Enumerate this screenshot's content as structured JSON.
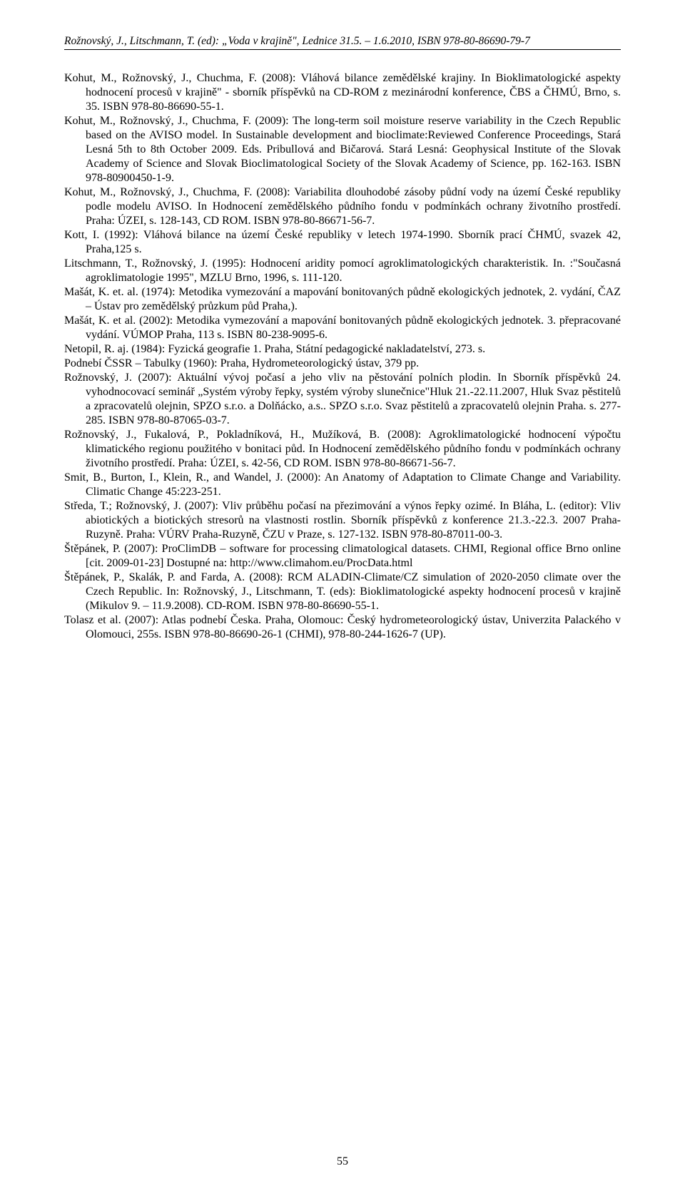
{
  "header": {
    "running_head": "Rožnovský, J., Litschmann, T. (ed): „Voda v krajině\", Lednice 31.5. – 1.6.2010, ISBN 978-80-86690-79-7"
  },
  "references": [
    "Kohut, M., Rožnovský, J., Chuchma, F. (2008): Vláhová bilance zemědělské krajiny. In Bioklimatologické aspekty hodnocení procesů v krajině\" - sborník příspěvků na CD-ROM z mezinárodní konference, ČBS a ČHMÚ, Brno, s. 35. ISBN 978-80-86690-55-1.",
    "Kohut, M., Rožnovský, J., Chuchma, F. (2009): The long-term soil moisture reserve variability in the Czech Republic based on the AVISO model. In Sustainable development and bioclimate:Reviewed Conference Proceedings, Stará Lesná 5th to 8th October 2009. Eds. Pribullová and Bičarová. Stará Lesná: Geophysical Institute of the Slovak Academy of Science and Slovak Bioclimatological Society of the Slovak Academy of Science, pp. 162-163. ISBN 978-80900450-1-9.",
    "Kohut, M., Rožnovský, J., Chuchma, F. (2008): Variabilita dlouhodobé zásoby půdní vody na území České republiky podle modelu AVISO. In Hodnocení zemědělského půdního fondu v podmínkách ochrany životního prostředí. Praha: ÚZEI, s. 128-143, CD ROM. ISBN 978-80-86671-56-7.",
    "Kott, I. (1992): Vláhová bilance na území České republiky v letech 1974-1990. Sborník prací ČHMÚ, svazek 42, Praha,125 s.",
    "Litschmann, T., Rožnovský, J. (1995): Hodnocení aridity pomocí agroklimatologických charakteristik. In. :\"Současná agroklimatologie 1995\", MZLU Brno, 1996, s. 111-120.",
    "Mašát, K. et. al. (1974): Metodika vymezování a mapování bonitovaných půdně ekologických jednotek, 2. vydání, ČAZ – Ústav pro zemědělský průzkum půd Praha,).",
    "Mašát, K. et al. (2002): Metodika vymezování a mapování bonitovaných půdně ekologických jednotek. 3. přepracované vydání. VÚMOP Praha, 113 s. ISBN 80-238-9095-6.",
    "Netopil, R. aj. (1984): Fyzická geografie 1. Praha, Státní pedagogické nakladatelství, 273. s.",
    "Podnebí ČSSR – Tabulky (1960): Praha, Hydrometeorologický ústav, 379 pp.",
    "Rožnovský, J. (2007): Aktuální vývoj počasí a jeho vliv na pěstování polních plodin. In Sborník příspěvků 24. vyhodnocovací seminář „Systém výroby řepky, systém výroby slunečnice\"Hluk 21.-22.11.2007, Hluk Svaz pěstitelů a zpracovatelů olejnin, SPZO s.r.o. a Dolňácko, a.s.. SPZO s.r.o. Svaz pěstitelů a zpracovatelů olejnin Praha.  s. 277-285. ISBN 978-80-87065-03-7.",
    "Rožnovský, J., Fukalová, P., Pokladníková, H., Mužíková, B. (2008): Agroklimatologické hodnocení výpočtu klimatického regionu použitého v bonitaci půd. In Hodnocení zemědělského půdního fondu v podmínkách ochrany životního prostředí. Praha: ÚZEI, s. 42-56, CD ROM. ISBN 978-80-86671-56-7.",
    "Smit, B., Burton, I., Klein, R., and Wandel, J. (2000): An Anatomy of Adaptation to Climate Change and Variability. Climatic Change 45:223-251.",
    "Středa, T.; Rožnovský, J. (2007): Vliv průběhu počasí na přezimování a výnos řepky ozimé. In Bláha, L. (editor): Vliv abiotických a biotických stresorů na vlastnosti rostlin. Sborník příspěvků z konference 21.3.-22.3. 2007 Praha-Ruzyně. Praha: VÚRV Praha-Ruzyně, ČZU v Praze, s. 127-132. ISBN 978-80-87011-00-3.",
    "Štěpánek, P. (2007): ProClimDB – software for processing climatological datasets. CHMI, Regional office Brno online [cit. 2009-01-23] Dostupné na: http://www.climahom.eu/ProcData.html",
    "Štěpánek, P., Skalák, P. and Farda, A. (2008): RCM ALADIN-Climate/CZ simulation of 2020-2050 climate over the Czech Republic. In: Rožnovský, J., Litschmann, T. (eds): Bioklimatologické aspekty hodnocení procesů v krajině (Mikulov 9. – 11.9.2008). CD-ROM. ISBN 978-80-86690-55-1.",
    "Tolasz et al. (2007): Atlas podnebí Česka. Praha, Olomouc: Český hydrometeorologický ústav, Univerzita Palackého v Olomouci, 255s. ISBN 978-80-86690-26-1 (CHMI), 978-80-244-1626-7 (UP)."
  ],
  "page_number": "55"
}
